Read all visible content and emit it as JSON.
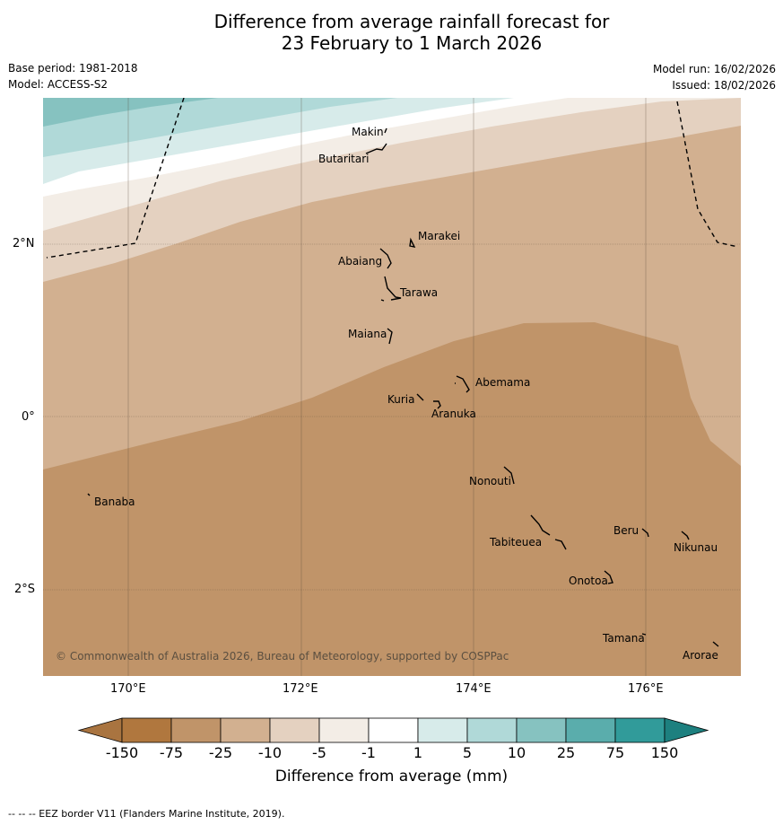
{
  "title_line1": "Difference from average rainfall forecast for",
  "title_line2": "23 February to 1 March 2026",
  "base_period": "Base period: 1981-2018",
  "model": "Model: ACCESS-S2",
  "model_run": "Model run: 16/02/2026",
  "issued": "Issued: 18/02/2026",
  "copyright": "© Commonwealth of Australia 2026, Bureau of Meteorology, supported by COSPPac",
  "footnote": "--  --  -- EEZ border V11 (Flanders Marine Institute, 2019).",
  "lon_labels": [
    "170°E",
    "172°E",
    "174°E",
    "176°E"
  ],
  "lat_labels": [
    "2°N",
    "0°",
    "2°S"
  ],
  "colorbar": {
    "title": "Difference from average (mm)",
    "ticks": [
      "-150",
      "-75",
      "-25",
      "-10",
      "-5",
      "-1",
      "1",
      "5",
      "10",
      "25",
      "75",
      "150"
    ],
    "colors": [
      "#a97440",
      "#b0773e",
      "#c09469",
      "#d2b090",
      "#e4d1c0",
      "#f3ede6",
      "#ffffff",
      "#d7ebea",
      "#b0d9d8",
      "#86c2c0",
      "#5aadac",
      "#319b9a",
      "#1d807f"
    ]
  },
  "places": [
    {
      "name": "Makin"
    },
    {
      "name": "Butaritari"
    },
    {
      "name": "Marakei"
    },
    {
      "name": "Abaiang"
    },
    {
      "name": "Tarawa"
    },
    {
      "name": "Maiana"
    },
    {
      "name": "Abemama"
    },
    {
      "name": "Kuria"
    },
    {
      "name": "Aranuka"
    },
    {
      "name": "Banaba"
    },
    {
      "name": "Nonouti"
    },
    {
      "name": "Beru"
    },
    {
      "name": "Tabiteuea"
    },
    {
      "name": "Nikunau"
    },
    {
      "name": "Onotoa"
    },
    {
      "name": "Tamana"
    },
    {
      "name": "Arorae"
    }
  ]
}
